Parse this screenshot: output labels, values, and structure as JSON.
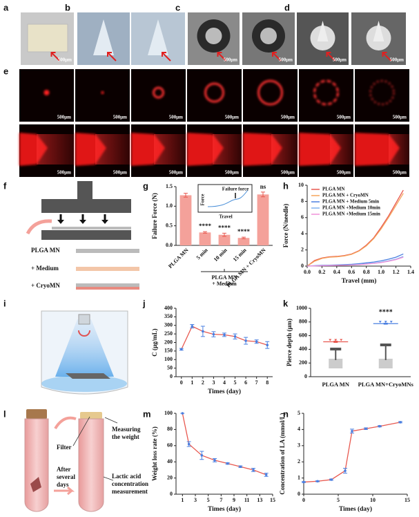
{
  "panel_labels": [
    "a",
    "b",
    "c",
    "d",
    "e",
    "f",
    "g",
    "h",
    "i",
    "j",
    "k",
    "l",
    "m",
    "n"
  ],
  "scale_labels": [
    "500μm",
    "500μm",
    "500μm",
    "500μm",
    "500μm",
    "500μm",
    "500μm",
    "500μm",
    "500μm",
    "500μm",
    "500μm",
    "500μm",
    "500μm",
    "500μm",
    "500μm",
    "500μm",
    "500μm",
    "500μm",
    "500μm"
  ],
  "diagram_f": {
    "labels": [
      "PLGA MN",
      "+ Medium",
      "+ CryoMN"
    ]
  },
  "diagram_l": {
    "labels": [
      "Filter",
      "Measuring the weight",
      "After several days",
      "Lactic acid concentration measurement"
    ]
  },
  "chart_data": [
    {
      "type": "bar",
      "ylabel": "Failure Force (N)",
      "categories": [
        "PLGA MN",
        "5 min",
        "10 min",
        "15 min",
        "PLGA MN + CryoMN"
      ],
      "values": [
        1.28,
        0.33,
        0.27,
        0.19,
        1.3
      ],
      "errors": [
        0.05,
        0.02,
        0.04,
        0.02,
        0.06
      ],
      "color": "#f4a19a",
      "error_color": "#e8584f",
      "ylim": [
        0,
        1.5
      ],
      "yticks": [
        {
          "value": 0,
          "label": "0.0"
        },
        0.5,
        {
          "value": 1,
          "label": "1.0"
        },
        {
          "value": 1.5,
          "label": "1.5"
        }
      ],
      "group_label": "PLGA MN + Medium",
      "annotations": [
        "****",
        "****",
        "****",
        "ns"
      ],
      "inset": {
        "title": "Failure force",
        "ylabel": "Force",
        "xlabel": "Travel"
      }
    },
    {
      "type": "line",
      "xlabel": "Travel (mm)",
      "ylabel": "Force (N/needle)",
      "x": [
        0,
        0.1,
        0.2,
        0.3,
        0.4,
        0.5,
        0.6,
        0.7,
        0.8,
        0.9,
        1.0,
        1.1,
        1.2,
        1.3
      ],
      "series": [
        {
          "name": "PLGA MN",
          "color": "#e8584f",
          "values": [
            0,
            0.7,
            1.0,
            1.15,
            1.2,
            1.3,
            1.5,
            1.9,
            2.6,
            3.5,
            4.8,
            6.2,
            7.8,
            9.4
          ]
        },
        {
          "name": "PLGA MN + CryoMN",
          "color": "#f5a45a",
          "values": [
            0,
            0.6,
            0.95,
            1.1,
            1.15,
            1.25,
            1.45,
            1.85,
            2.5,
            3.4,
            4.6,
            6.0,
            7.5,
            9.0
          ]
        },
        {
          "name": "PLGA MN + Medium 5min",
          "color": "#4a7fe0",
          "values": [
            0,
            0.05,
            0.1,
            0.12,
            0.15,
            0.18,
            0.22,
            0.3,
            0.4,
            0.5,
            0.65,
            0.85,
            1.1,
            1.5
          ]
        },
        {
          "name": "PLGA MN +Medium 10min",
          "color": "#7fb0f0",
          "values": [
            0,
            0.03,
            0.06,
            0.08,
            0.1,
            0.12,
            0.15,
            0.2,
            0.28,
            0.36,
            0.48,
            0.65,
            0.85,
            1.2
          ]
        },
        {
          "name": "PLGA MN +Medium 15min",
          "color": "#f090d8",
          "values": [
            0,
            0.02,
            0.05,
            0.07,
            0.09,
            0.11,
            0.14,
            0.18,
            0.25,
            0.33,
            0.44,
            0.6,
            0.8,
            1.1
          ]
        }
      ],
      "markers": false,
      "xlim": [
        0,
        1.4
      ],
      "xticks": [
        {
          "value": 0,
          "label": "0.0"
        },
        0.2,
        0.4,
        0.6,
        0.8,
        {
          "value": 1,
          "label": "1.0"
        },
        1.2,
        1.4
      ],
      "ylim": [
        0,
        10
      ],
      "yticks": [
        0,
        2,
        4,
        6,
        8,
        10
      ],
      "legend": "top-left"
    },
    {
      "type": "line",
      "xlabel": "Times (day)",
      "ylabel": "C (μg/mL)",
      "x": [
        0,
        1,
        2,
        3,
        4,
        5,
        6,
        7,
        8
      ],
      "series": [
        {
          "color": "#e8584f",
          "marker_color": "#4a7fe0",
          "values": [
            160,
            295,
            265,
            248,
            245,
            235,
            210,
            205,
            185
          ],
          "errors": [
            5,
            10,
            30,
            15,
            10,
            15,
            20,
            10,
            20
          ]
        }
      ],
      "markers": true,
      "xlim": [
        -0.5,
        8.5
      ],
      "xticks": [
        0,
        1,
        2,
        3,
        4,
        5,
        6,
        7,
        8
      ],
      "ylim": [
        0,
        400
      ],
      "yticks": [
        0,
        50,
        100,
        150,
        200,
        250,
        300,
        350,
        400
      ]
    },
    {
      "type": "scatter",
      "ylabel": "Pierce depth (μm)",
      "categories": [
        "PLGA MN",
        "PLGA MN+CryoMNs"
      ],
      "values": [
        510,
        775
      ],
      "errors": [
        10,
        8
      ],
      "colors": [
        "#e8584f",
        "#4a7fe0"
      ],
      "ylim": [
        0,
        1000
      ],
      "yticks": [
        0,
        200,
        400,
        600,
        800,
        1000
      ],
      "annotations": [
        "****"
      ]
    },
    {
      "type": "line",
      "xlabel": "Times (day)",
      "ylabel": "Weight loss rate (%)",
      "x": [
        1,
        2,
        4,
        6,
        8,
        10,
        12,
        14
      ],
      "series": [
        {
          "color": "#e8584f",
          "marker_color": "#4a7fe0",
          "values": [
            100,
            62,
            48,
            42,
            38,
            34,
            30,
            24
          ],
          "errors": [
            0,
            3,
            5,
            2,
            1,
            1,
            2,
            2
          ]
        }
      ],
      "markers": true,
      "xlim": [
        0,
        15
      ],
      "xticks": [
        1,
        3,
        5,
        7,
        9,
        11,
        13,
        15
      ],
      "ylim": [
        0,
        100
      ],
      "yticks": [
        0,
        20,
        40,
        60,
        80,
        100
      ]
    },
    {
      "type": "line",
      "xlabel": "Times (day)",
      "ylabel": "Concentration of LA (mmol/L)",
      "x": [
        0,
        2,
        4,
        6,
        7,
        9,
        11,
        14
      ],
      "series": [
        {
          "color": "#e8584f",
          "marker_color": "#4a7fe0",
          "values": [
            0.75,
            0.8,
            0.9,
            1.45,
            3.9,
            4.05,
            4.2,
            4.45
          ],
          "errors": [
            0.03,
            0.03,
            0.04,
            0.15,
            0.12,
            0.05,
            0.04,
            0.04
          ]
        }
      ],
      "markers": true,
      "xlim": [
        0,
        15
      ],
      "xticks": [
        0,
        5,
        10,
        15
      ],
      "ylim": [
        0,
        5
      ],
      "yticks": [
        0,
        1,
        2,
        3,
        4,
        5
      ]
    }
  ]
}
